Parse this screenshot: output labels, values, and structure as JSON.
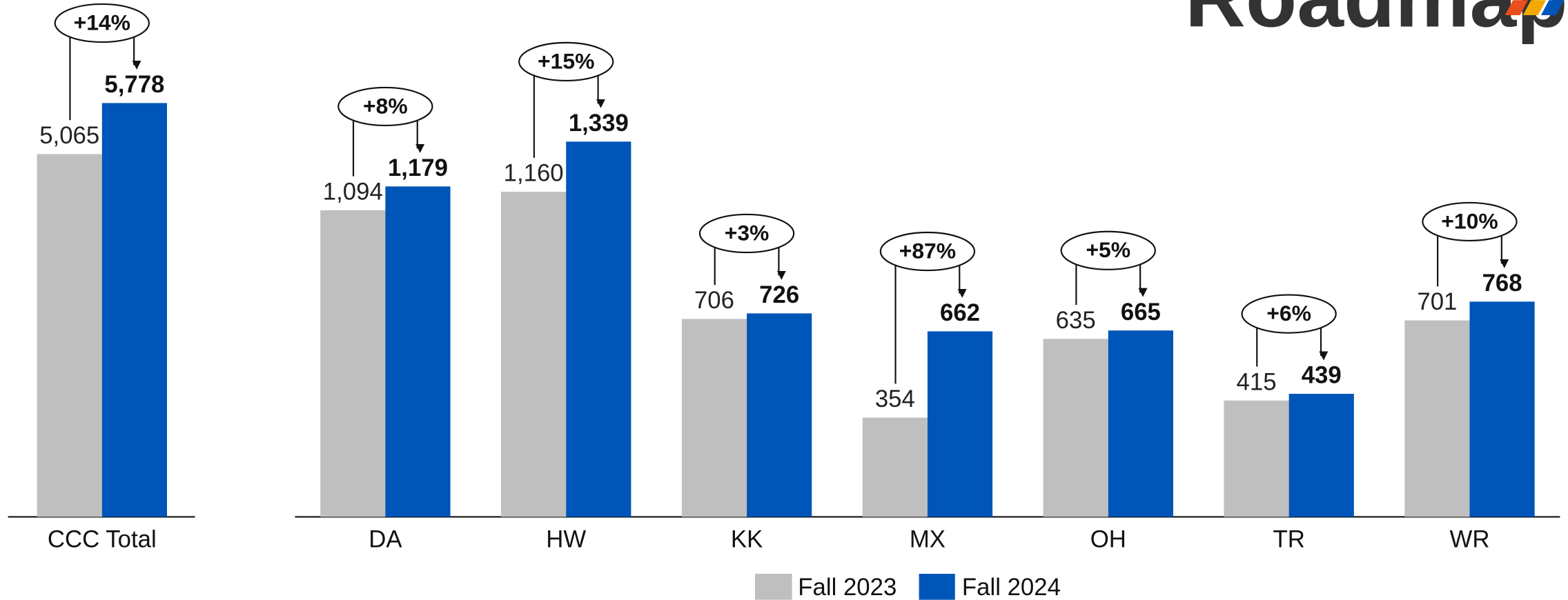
{
  "logo_text": "Roadmap",
  "chart_data": [
    {
      "type": "bar",
      "categories": [
        "CCC Total"
      ],
      "ylim": [
        0,
        7200
      ],
      "series": [
        {
          "color": "#bfbfbf",
          "values": [
            5065
          ],
          "value_labels": [
            "5,065"
          ]
        },
        {
          "color": "#0055b8",
          "values": [
            5778
          ],
          "value_labels": [
            "5,778"
          ]
        }
      ],
      "annotations": [
        "+14%"
      ]
    },
    {
      "type": "bar",
      "categories": [
        "DA",
        "HW",
        "KK",
        "MX",
        "OH",
        "TR",
        "WR"
      ],
      "ylim": [
        0,
        1840
      ],
      "series": [
        {
          "name": "Fall 2023",
          "color": "#bfbfbf",
          "values": [
            1094,
            1160,
            706,
            354,
            635,
            415,
            701
          ],
          "value_labels": [
            "1,094",
            "1,160",
            "706",
            "354",
            "635",
            "415",
            "701"
          ]
        },
        {
          "name": "Fall 2024",
          "color": "#0055b8",
          "values": [
            1179,
            1339,
            726,
            662,
            665,
            439,
            768
          ],
          "value_labels": [
            "1,179",
            "1,339",
            "726",
            "662",
            "665",
            "439",
            "768"
          ]
        }
      ],
      "annotations": [
        "+8%",
        "+15%",
        "+3%",
        "+87%",
        "+5%",
        "+6%",
        "+10%"
      ]
    }
  ]
}
